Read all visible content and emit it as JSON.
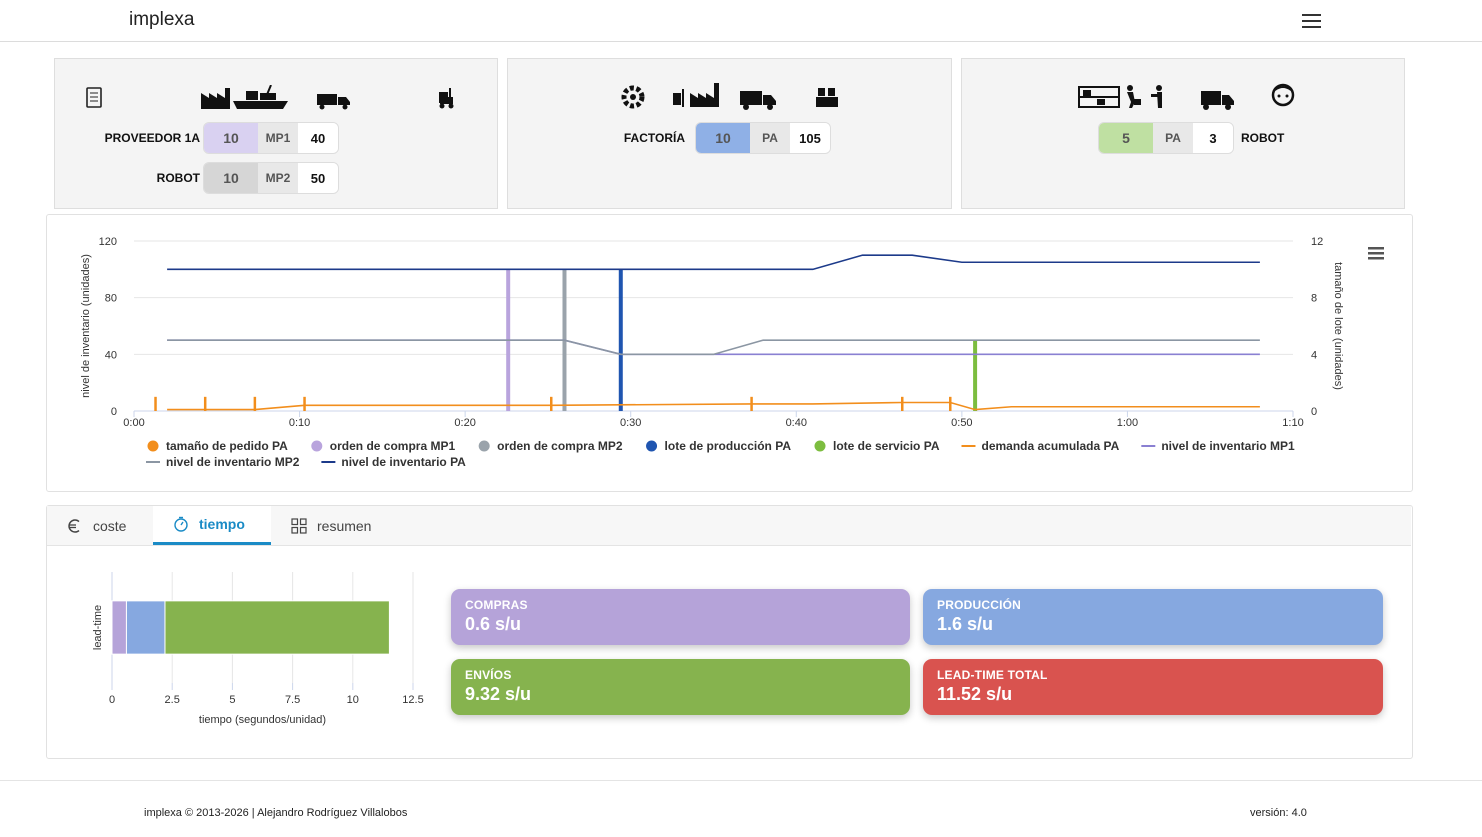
{
  "navbar": {
    "brand": "implexa"
  },
  "cards": [
    {
      "rows": [
        {
          "label": "PROVEEDOR 1A",
          "qty": "10",
          "item": "MP1",
          "stock": "40",
          "color": "#d9d1f1"
        },
        {
          "label": "ROBOT",
          "qty": "10",
          "item": "MP2",
          "stock": "50",
          "color": "#d6d6d6"
        }
      ]
    },
    {
      "rows": [
        {
          "label": "FACTORÍA",
          "qty": "10",
          "item": "PA",
          "stock": "105",
          "color": "#8fb0e6"
        }
      ]
    },
    {
      "rows": [
        {
          "label": "ROBOT",
          "qty": "5",
          "item": "PA",
          "stock": "3",
          "color": "#bfe0a2"
        }
      ]
    }
  ],
  "chart_data": [
    {
      "type": "line",
      "xlim": [
        0,
        70
      ],
      "xticks": [
        {
          "value": 0,
          "label": "0:00"
        },
        {
          "value": 10,
          "label": "0:10"
        },
        {
          "value": 20,
          "label": "0:20"
        },
        {
          "value": 30,
          "label": "0:30"
        },
        {
          "value": 40,
          "label": "0:40"
        },
        {
          "value": 50,
          "label": "0:50"
        },
        {
          "value": 60,
          "label": "1:00"
        },
        {
          "value": 70,
          "label": "1:10"
        }
      ],
      "ylim": [
        0,
        120
      ],
      "yticks": [
        0,
        40,
        80,
        120
      ],
      "y2lim": [
        0,
        12
      ],
      "y2ticks": [
        0,
        4,
        8,
        12
      ],
      "ylabel": "nivel de inventario (unidades)",
      "y2label": "tamaño de lote (unidades)",
      "grid": true,
      "series": [
        {
          "name": "tamaño de pedido PA",
          "type": "stem",
          "axis": "y2",
          "color": "#f28e1c",
          "x": [
            1.3,
            4.3,
            7.3,
            10.3,
            25.2,
            37.3,
            46.4,
            49.3
          ],
          "values": [
            1,
            1,
            1,
            1,
            1,
            1,
            1,
            1
          ]
        },
        {
          "name": "orden de compra MP1",
          "type": "stem",
          "axis": "y2",
          "color": "#b9a4dd",
          "x": [
            22.6
          ],
          "values": [
            10
          ]
        },
        {
          "name": "orden de compra MP2",
          "type": "stem",
          "axis": "y2",
          "color": "#9aa3ab",
          "x": [
            26
          ],
          "values": [
            10
          ]
        },
        {
          "name": "lote de producción PA",
          "type": "stem",
          "axis": "y2",
          "color": "#1f55b0",
          "x": [
            29.4
          ],
          "values": [
            10
          ]
        },
        {
          "name": "lote de servicio PA",
          "type": "stem",
          "axis": "y2",
          "color": "#7cbd3f",
          "x": [
            50.8
          ],
          "values": [
            5
          ]
        },
        {
          "name": "demanda acumulada PA",
          "color": "#f28e1c",
          "x": [
            2,
            7.3,
            10.3,
            25.2,
            37.3,
            41,
            46.4,
            49.3,
            50.8,
            53,
            68
          ],
          "values": [
            1,
            1,
            4,
            4,
            5,
            5,
            6,
            6,
            1,
            3,
            3
          ]
        },
        {
          "name": "nivel de inventario MP1",
          "color": "#8a80d2",
          "x": [
            2,
            26,
            29.4,
            68
          ],
          "values": [
            50,
            50,
            40,
            40
          ]
        },
        {
          "name": "nivel de inventario MP2",
          "color": "#8b96a3",
          "x": [
            2,
            26,
            29.4,
            35,
            38,
            68
          ],
          "values": [
            50,
            50,
            40,
            40,
            50,
            50
          ]
        },
        {
          "name": "nivel de inventario PA",
          "color": "#1c3a8a",
          "x": [
            2,
            41,
            44,
            47,
            50,
            68
          ],
          "values": [
            100,
            100,
            110,
            110,
            105,
            105
          ]
        }
      ]
    },
    {
      "type": "bar",
      "orientation": "horizontal",
      "stacked": true,
      "categories": [
        "lead-time"
      ],
      "xlim": [
        0,
        12.5
      ],
      "xticks": [
        0,
        2.5,
        5,
        7.5,
        10,
        12.5
      ],
      "xlabel": "tiempo (segundos/unidad)",
      "grid": true,
      "series": [
        {
          "color": "#b5a3d9",
          "values": [
            0.6
          ]
        },
        {
          "color": "#86a8e0",
          "values": [
            1.6
          ]
        },
        {
          "color": "#86b34e",
          "values": [
            9.32
          ]
        }
      ]
    }
  ],
  "tabs": {
    "items": [
      "coste",
      "tiempo",
      "resumen"
    ],
    "active": 1
  },
  "stats": [
    {
      "label": "COMPRAS",
      "value": "0.6 s/u",
      "color": "#b5a3d9"
    },
    {
      "label": "PRODUCCIÓN",
      "value": "1.6 s/u",
      "color": "#86a8e0"
    },
    {
      "label": "ENVÍOS",
      "value": "9.32 s/u",
      "color": "#86b34e"
    },
    {
      "label": "LEAD-TIME TOTAL",
      "value": "11.52 s/u",
      "color": "#d9534f"
    }
  ],
  "footer": {
    "copyright": "implexa © 2013-2026 | Alejandro Rodríguez Villalobos",
    "version": "versión: 4.0"
  }
}
